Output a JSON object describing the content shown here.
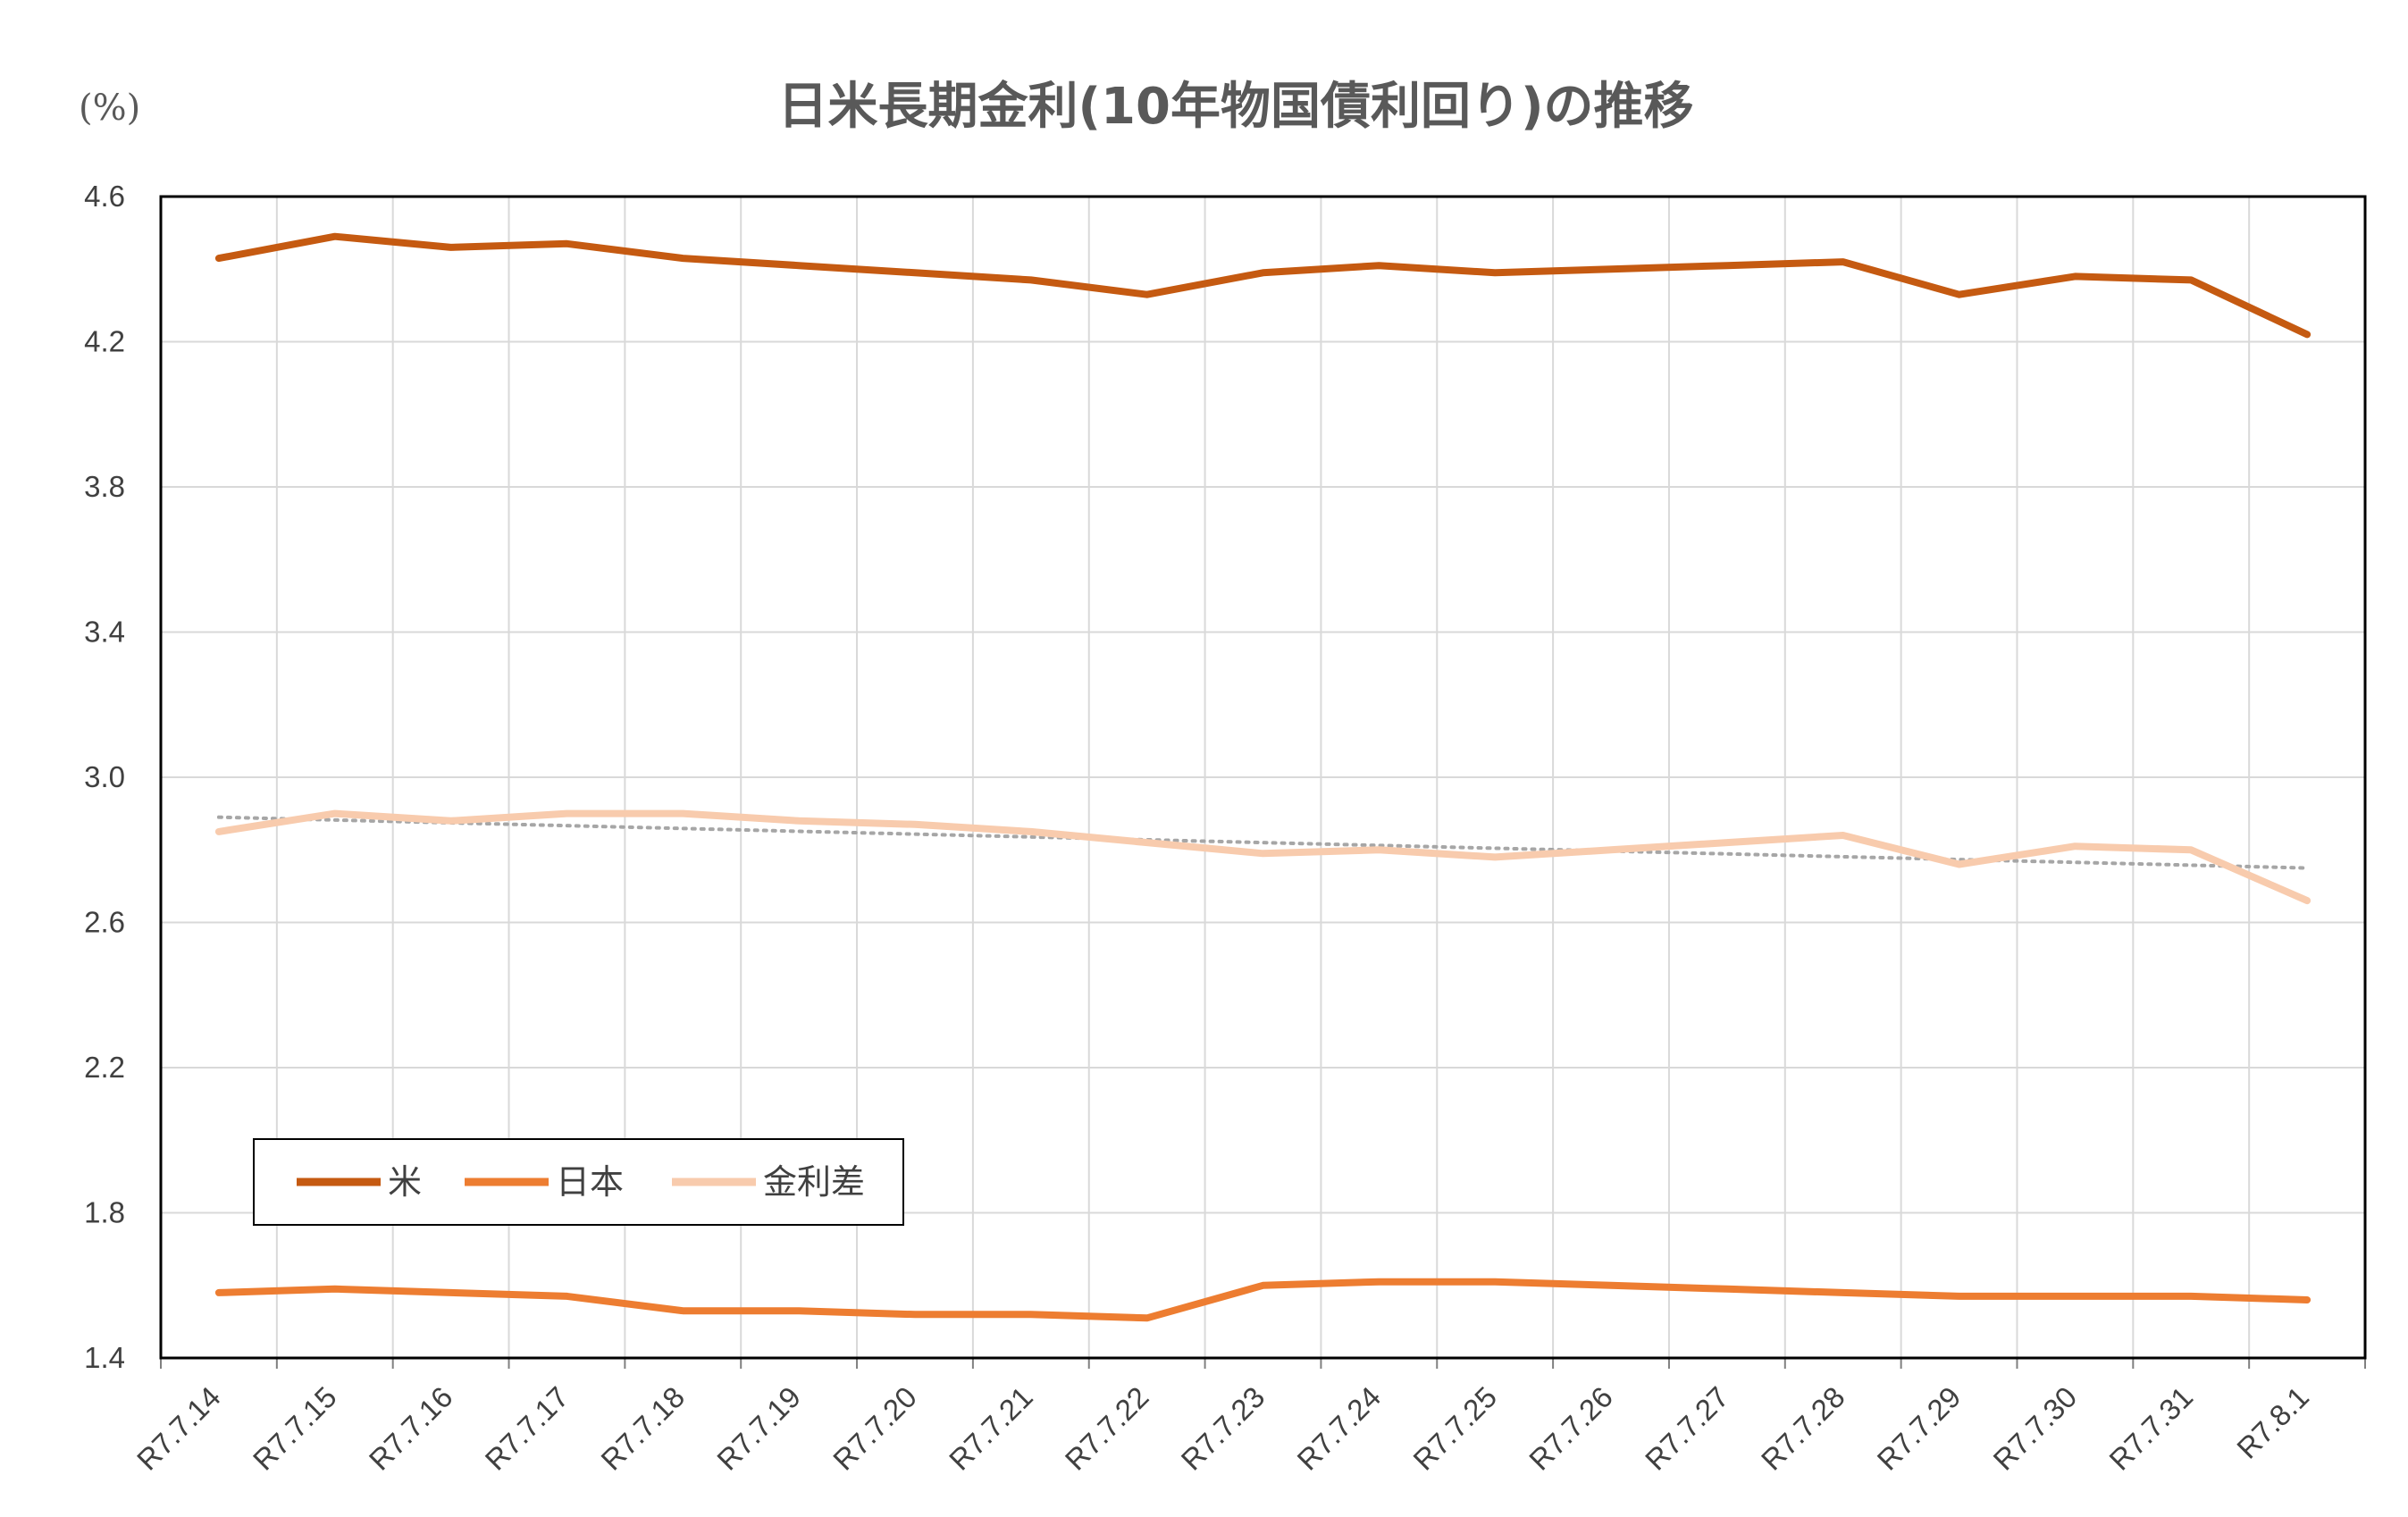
{
  "chart_data": {
    "type": "line",
    "title": "日米長期金利(10年物国債利回り)の推移",
    "unit_label": "(%)",
    "ylim": [
      1.4,
      4.6
    ],
    "yticks": [
      "4.6",
      "4.2",
      "3.8",
      "3.4",
      "3.0",
      "2.6",
      "2.2",
      "1.8",
      "1.4"
    ],
    "ytick_values": [
      4.6,
      4.2,
      3.8,
      3.4,
      3.0,
      2.6,
      2.2,
      1.8,
      1.4
    ],
    "categories": [
      "R7.7.14",
      "R7.7.15",
      "R7.7.16",
      "R7.7.17",
      "R7.7.18",
      "R7.7.19",
      "R7.7.20",
      "R7.7.21",
      "R7.7.22",
      "R7.7.23",
      "R7.7.24",
      "R7.7.25",
      "R7.7.26",
      "R7.7.27",
      "R7.7.28",
      "R7.7.29",
      "R7.7.30",
      "R7.7.31",
      "R7.8.1"
    ],
    "grid": true,
    "legend_position": "bottom-left",
    "series": [
      {
        "name": "米",
        "color": "#c55a11",
        "values": [
          4.43,
          4.49,
          4.46,
          4.47,
          4.43,
          4.41,
          4.39,
          4.37,
          4.33,
          4.39,
          4.41,
          4.39,
          4.4,
          4.41,
          4.42,
          4.33,
          4.38,
          4.37,
          4.22
        ]
      },
      {
        "name": "日本",
        "color": "#ed7d31",
        "values": [
          1.58,
          1.59,
          1.58,
          1.57,
          1.53,
          1.53,
          1.52,
          1.52,
          1.51,
          1.6,
          1.61,
          1.61,
          1.6,
          1.59,
          1.58,
          1.57,
          1.57,
          1.57,
          1.56
        ]
      },
      {
        "name": "金利差",
        "color": "#f8cbad",
        "values": [
          2.85,
          2.9,
          2.88,
          2.9,
          2.9,
          2.88,
          2.87,
          2.85,
          2.82,
          2.79,
          2.8,
          2.78,
          2.8,
          2.82,
          2.84,
          2.76,
          2.81,
          2.8,
          2.66
        ]
      }
    ],
    "trendline": {
      "color": "#a6a6a6",
      "style": "dotted",
      "start": 2.89,
      "end": 2.75
    }
  }
}
